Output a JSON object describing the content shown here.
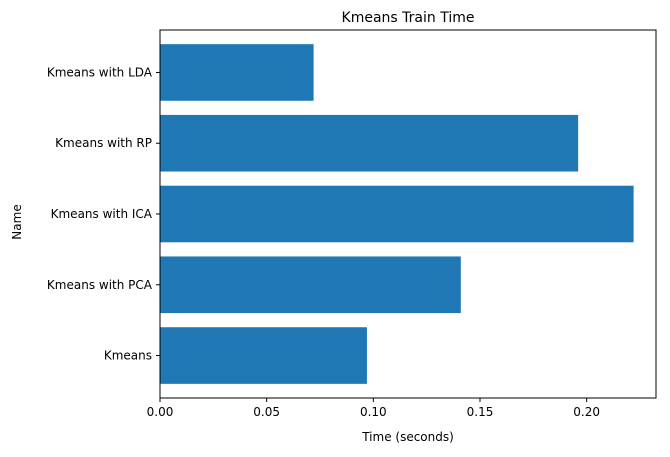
{
  "chart_data": {
    "type": "bar",
    "orientation": "horizontal",
    "title": "Kmeans Train Time",
    "xlabel": "Time (seconds)",
    "ylabel": "Name",
    "categories": [
      "Kmeans",
      "Kmeans with PCA",
      "Kmeans with ICA",
      "Kmeans with RP",
      "Kmeans with LDA"
    ],
    "values": [
      0.097,
      0.141,
      0.222,
      0.196,
      0.072
    ],
    "xlim": [
      0,
      0.2325
    ],
    "xticks": [
      0.0,
      0.05,
      0.1,
      0.15,
      0.2
    ],
    "xtick_labels": [
      "0.00",
      "0.05",
      "0.10",
      "0.15",
      "0.20"
    ],
    "bar_color": "#1f77b4",
    "grid": false,
    "legend": "none"
  }
}
